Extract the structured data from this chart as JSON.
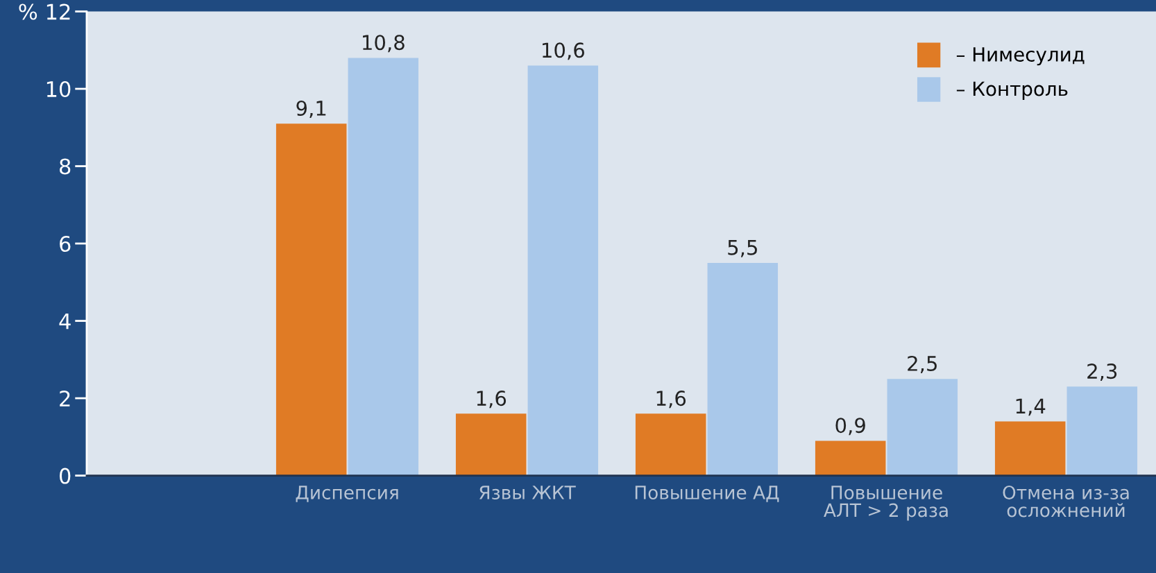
{
  "chart_data": {
    "type": "bar",
    "categories": [
      "Диспепсия",
      "Язвы ЖКТ",
      "Повышение АД",
      "Повышение\nАЛТ > 2 раза",
      "Отмена из-за\nосложнений"
    ],
    "series": [
      {
        "name": "– Нимесулид",
        "color": "#e07b25",
        "values": [
          9.1,
          1.6,
          1.6,
          0.9,
          1.4
        ],
        "value_labels": [
          "9,1",
          "1,6",
          "1,6",
          "0,9",
          "1,4"
        ]
      },
      {
        "name": "– Контроль",
        "color": "#a9c8ea",
        "values": [
          10.8,
          10.6,
          5.5,
          2.5,
          2.3
        ],
        "value_labels": [
          "10,8",
          "10,6",
          "5,5",
          "2,5",
          "2,3"
        ]
      }
    ],
    "ylim": [
      0,
      12
    ],
    "yticks": [
      0,
      2,
      4,
      6,
      8,
      10,
      {
        "value": 12,
        "label": "% 12"
      }
    ],
    "legend": "top right",
    "grid": false
  }
}
